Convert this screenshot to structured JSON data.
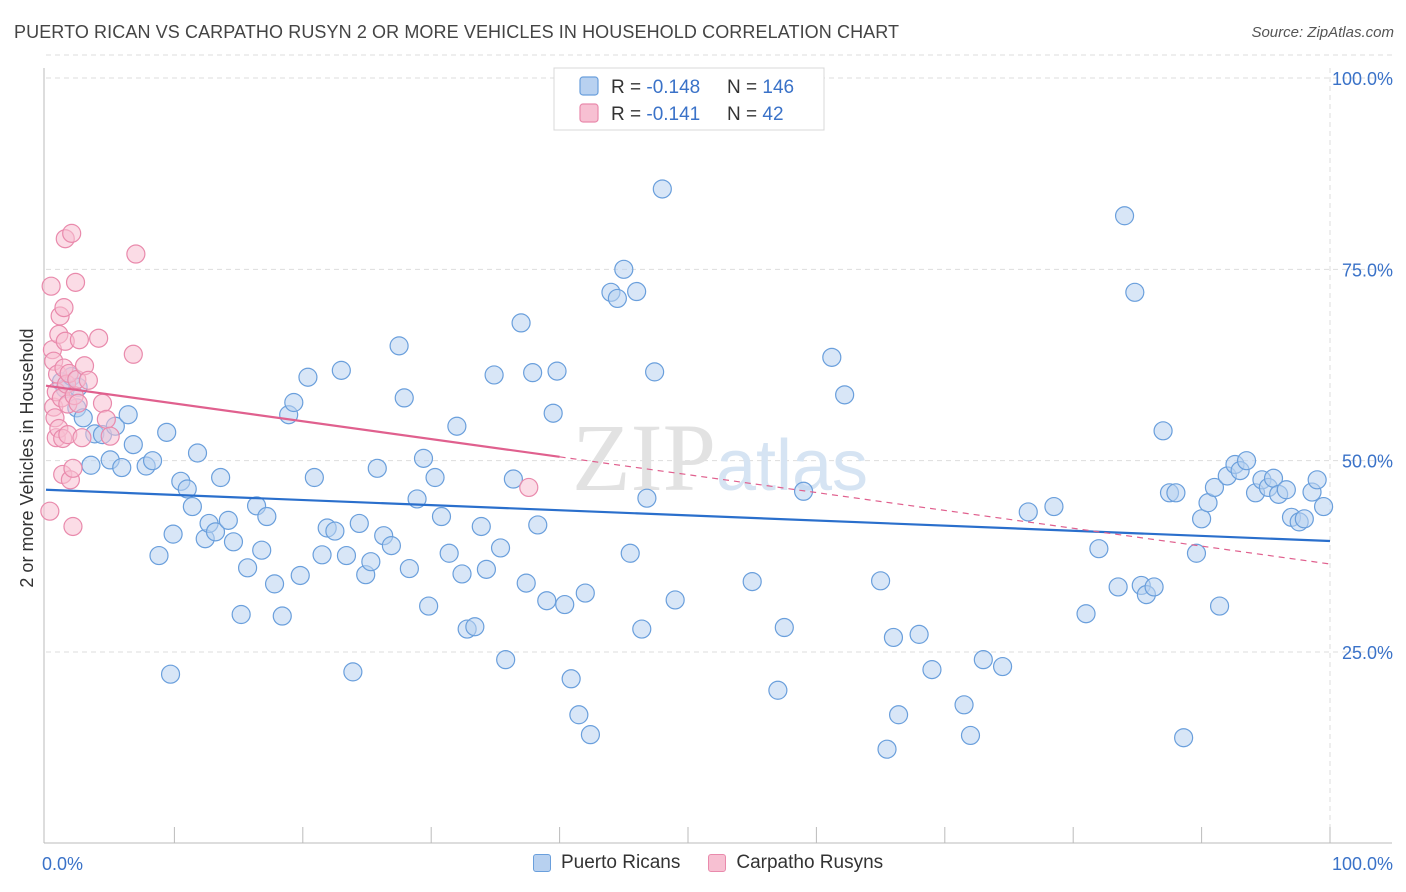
{
  "header": {
    "title": "PUERTO RICAN VS CARPATHO RUSYN 2 OR MORE VEHICLES IN HOUSEHOLD CORRELATION CHART",
    "source": "Source: ZipAtlas.com"
  },
  "watermark": "ZIPatlas",
  "colors": {
    "blue_fill": "#b8d1f0",
    "blue_stroke": "#6a9fdc",
    "blue_line": "#2a6fcc",
    "pink_fill": "#f7c0d2",
    "pink_stroke": "#e98aac",
    "pink_line": "#e0608e",
    "axis_text": "#3a72c8",
    "grid": "#dddddd"
  },
  "legend": {
    "rows": [
      {
        "r_label": "R = ",
        "r_value": "-0.148",
        "n_label": "N = ",
        "n_value": "146"
      },
      {
        "r_label": "R = ",
        "r_value": "-0.141",
        "n_label": "N = ",
        "n_value": " 42"
      }
    ]
  },
  "bottom_legend": [
    "Puerto Ricans",
    "Carpatho Rusyns"
  ],
  "chart_data": {
    "type": "scatter",
    "xlabel": "",
    "ylabel": "2 or more Vehicles in Household",
    "xlim": [
      0,
      100
    ],
    "ylim": [
      0,
      103
    ],
    "x_tick_labels": [
      "0.0%",
      "100.0%"
    ],
    "y_tick_labels": [
      "25.0%",
      "50.0%",
      "75.0%",
      "100.0%"
    ],
    "y_ticks": [
      25,
      50,
      75,
      100
    ],
    "grid": true,
    "series": [
      {
        "name": "Puerto Ricans",
        "trend": {
          "x1": 0,
          "y1": 46.2,
          "x2": 100,
          "y2": 39.5
        },
        "points": [
          [
            1.2,
            60.3
          ],
          [
            1.5,
            59.4
          ],
          [
            2.0,
            61.0
          ],
          [
            2.5,
            59.6
          ],
          [
            2.4,
            56.9
          ],
          [
            2.9,
            55.6
          ],
          [
            3.5,
            49.4
          ],
          [
            3.8,
            53.5
          ],
          [
            4.4,
            53.4
          ],
          [
            5.0,
            50.1
          ],
          [
            5.4,
            54.5
          ],
          [
            5.9,
            49.1
          ],
          [
            6.4,
            56.0
          ],
          [
            6.8,
            52.1
          ],
          [
            7.8,
            49.3
          ],
          [
            8.3,
            50.0
          ],
          [
            8.8,
            37.6
          ],
          [
            9.4,
            53.7
          ],
          [
            9.7,
            22.1
          ],
          [
            9.9,
            40.4
          ],
          [
            10.5,
            47.3
          ],
          [
            11.0,
            46.3
          ],
          [
            11.4,
            44.0
          ],
          [
            11.8,
            51.0
          ],
          [
            12.4,
            39.8
          ],
          [
            12.7,
            41.8
          ],
          [
            13.2,
            40.7
          ],
          [
            13.6,
            47.8
          ],
          [
            14.2,
            42.2
          ],
          [
            14.6,
            39.4
          ],
          [
            15.2,
            29.9
          ],
          [
            15.7,
            36.0
          ],
          [
            16.4,
            44.1
          ],
          [
            16.8,
            38.3
          ],
          [
            17.2,
            42.7
          ],
          [
            17.8,
            33.9
          ],
          [
            18.4,
            29.7
          ],
          [
            18.9,
            56.0
          ],
          [
            19.3,
            57.6
          ],
          [
            19.8,
            35.0
          ],
          [
            20.4,
            60.9
          ],
          [
            20.9,
            47.8
          ],
          [
            21.5,
            37.7
          ],
          [
            21.9,
            41.2
          ],
          [
            22.5,
            40.8
          ],
          [
            23.0,
            61.8
          ],
          [
            23.4,
            37.6
          ],
          [
            23.9,
            22.4
          ],
          [
            24.4,
            41.8
          ],
          [
            24.9,
            35.1
          ],
          [
            25.3,
            36.8
          ],
          [
            25.8,
            49.0
          ],
          [
            26.3,
            40.2
          ],
          [
            26.9,
            38.9
          ],
          [
            27.5,
            65.0
          ],
          [
            27.9,
            58.2
          ],
          [
            28.3,
            35.9
          ],
          [
            28.9,
            45.0
          ],
          [
            29.4,
            50.3
          ],
          [
            29.8,
            31.0
          ],
          [
            30.3,
            47.8
          ],
          [
            30.8,
            42.7
          ],
          [
            31.4,
            37.9
          ],
          [
            32.0,
            54.5
          ],
          [
            32.4,
            35.2
          ],
          [
            32.8,
            28.0
          ],
          [
            33.4,
            28.3
          ],
          [
            33.9,
            41.4
          ],
          [
            34.3,
            35.8
          ],
          [
            34.9,
            61.2
          ],
          [
            35.4,
            38.6
          ],
          [
            35.8,
            24.0
          ],
          [
            36.4,
            47.6
          ],
          [
            37.0,
            68.0
          ],
          [
            37.4,
            34.0
          ],
          [
            37.9,
            61.5
          ],
          [
            38.3,
            41.6
          ],
          [
            39.0,
            31.7
          ],
          [
            39.5,
            56.2
          ],
          [
            39.8,
            61.7
          ],
          [
            40.4,
            31.2
          ],
          [
            40.9,
            21.5
          ],
          [
            41.5,
            16.8
          ],
          [
            42.0,
            32.7
          ],
          [
            42.4,
            14.2
          ],
          [
            44.0,
            72.0
          ],
          [
            44.5,
            71.2
          ],
          [
            45.0,
            75.0
          ],
          [
            45.5,
            37.9
          ],
          [
            46.0,
            72.1
          ],
          [
            46.4,
            28.0
          ],
          [
            46.8,
            45.1
          ],
          [
            47.4,
            61.6
          ],
          [
            48.0,
            85.5
          ],
          [
            49.0,
            31.8
          ],
          [
            55.0,
            34.2
          ],
          [
            57.0,
            20.0
          ],
          [
            57.5,
            28.2
          ],
          [
            59.0,
            46.0
          ],
          [
            61.2,
            63.5
          ],
          [
            62.2,
            58.6
          ],
          [
            65.0,
            34.3
          ],
          [
            65.5,
            12.3
          ],
          [
            66.0,
            26.9
          ],
          [
            66.4,
            16.8
          ],
          [
            68.0,
            27.3
          ],
          [
            69.0,
            22.7
          ],
          [
            71.5,
            18.1
          ],
          [
            72.0,
            14.1
          ],
          [
            73.0,
            24.0
          ],
          [
            74.5,
            23.1
          ],
          [
            76.5,
            43.3
          ],
          [
            78.5,
            44.0
          ],
          [
            81.0,
            30.0
          ],
          [
            82.0,
            38.5
          ],
          [
            83.5,
            33.5
          ],
          [
            84.0,
            82.0
          ],
          [
            84.8,
            72.0
          ],
          [
            85.3,
            33.7
          ],
          [
            85.7,
            32.5
          ],
          [
            86.3,
            33.5
          ],
          [
            87.0,
            53.9
          ],
          [
            87.5,
            45.8
          ],
          [
            88.0,
            45.8
          ],
          [
            88.6,
            13.8
          ],
          [
            89.6,
            37.9
          ],
          [
            90.0,
            42.4
          ],
          [
            90.5,
            44.5
          ],
          [
            91.0,
            46.5
          ],
          [
            91.4,
            31.0
          ],
          [
            92.0,
            48.0
          ],
          [
            92.6,
            49.5
          ],
          [
            93.0,
            48.7
          ],
          [
            93.5,
            50.0
          ],
          [
            94.2,
            45.8
          ],
          [
            94.7,
            47.5
          ],
          [
            95.2,
            46.5
          ],
          [
            95.6,
            47.7
          ],
          [
            96.0,
            45.6
          ],
          [
            96.6,
            46.2
          ],
          [
            97.0,
            42.6
          ],
          [
            97.6,
            42.0
          ],
          [
            98.0,
            42.4
          ],
          [
            98.6,
            45.9
          ],
          [
            99.0,
            47.5
          ],
          [
            99.5,
            44.0
          ]
        ]
      },
      {
        "name": "Carpatho Rusyns",
        "trend": {
          "x1": 0,
          "y1": 59.8,
          "x2": 40,
          "y2": 50.5
        },
        "trend_dashed": {
          "x1": 40,
          "y1": 50.5,
          "x2": 100,
          "y2": 36.5
        },
        "points": [
          [
            0.3,
            43.4
          ],
          [
            0.4,
            72.8
          ],
          [
            0.5,
            64.5
          ],
          [
            0.6,
            63.0
          ],
          [
            0.6,
            57.0
          ],
          [
            0.7,
            55.6
          ],
          [
            0.8,
            53.0
          ],
          [
            0.8,
            59.0
          ],
          [
            0.9,
            61.3
          ],
          [
            1.0,
            66.5
          ],
          [
            1.0,
            54.2
          ],
          [
            1.1,
            68.9
          ],
          [
            1.2,
            58.2
          ],
          [
            1.3,
            52.9
          ],
          [
            1.3,
            48.2
          ],
          [
            1.4,
            70.0
          ],
          [
            1.4,
            62.1
          ],
          [
            1.5,
            79.0
          ],
          [
            1.5,
            65.6
          ],
          [
            1.6,
            60.0
          ],
          [
            1.7,
            57.4
          ],
          [
            1.7,
            53.4
          ],
          [
            1.8,
            61.4
          ],
          [
            1.9,
            47.5
          ],
          [
            2.0,
            79.7
          ],
          [
            2.1,
            49.0
          ],
          [
            2.1,
            41.4
          ],
          [
            2.2,
            58.5
          ],
          [
            2.3,
            73.3
          ],
          [
            2.4,
            60.6
          ],
          [
            2.5,
            57.5
          ],
          [
            2.6,
            65.8
          ],
          [
            2.8,
            53.0
          ],
          [
            3.0,
            62.4
          ],
          [
            3.3,
            60.5
          ],
          [
            4.1,
            66.0
          ],
          [
            4.4,
            57.5
          ],
          [
            4.7,
            55.4
          ],
          [
            5.0,
            53.2
          ],
          [
            6.8,
            63.9
          ],
          [
            7.0,
            77.0
          ],
          [
            37.6,
            46.5
          ]
        ]
      }
    ]
  }
}
